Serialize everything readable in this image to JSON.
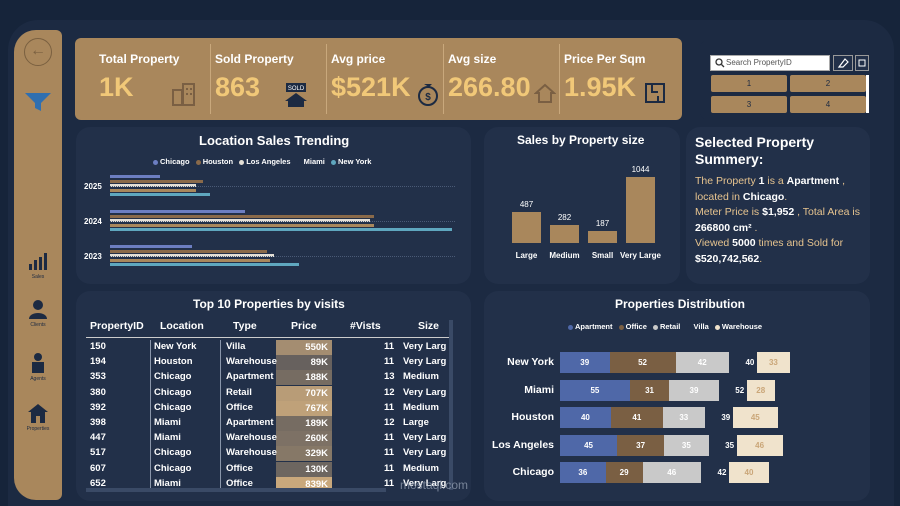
{
  "kpis": [
    {
      "title": "Total Property",
      "value": "1K",
      "icon": "buildings-icon"
    },
    {
      "title": "Sold Property",
      "value": "863",
      "icon": "sold-house-icon"
    },
    {
      "title": "Avg price",
      "value": "$521K",
      "icon": "money-bag-icon"
    },
    {
      "title": "Avg size",
      "value": "266.80",
      "icon": "house-icon"
    },
    {
      "title": "Price Per Sqm",
      "value": "1.95K",
      "icon": "floor-plan-icon"
    }
  ],
  "slicer": {
    "search_placeholder": "Search PropertyID",
    "chips": [
      "1",
      "2",
      "3",
      "4"
    ]
  },
  "sidebar": {
    "items": [
      {
        "label": "Sales",
        "icon": "bar-chart-icon"
      },
      {
        "label": "Clients",
        "icon": "clients-icon"
      },
      {
        "label": "Agents",
        "icon": "agents-icon"
      },
      {
        "label": "Properties",
        "icon": "properties-icon"
      }
    ]
  },
  "location_trend": {
    "title": "Location Sales Trending",
    "legend": [
      "Chicago",
      "Houston",
      "Los Angeles",
      "Miami",
      "New York"
    ],
    "colors": [
      "#6c7ec2",
      "#8a6a4a",
      "#e4dfd6",
      "#a9875c",
      "#5fa7bf"
    ]
  },
  "size_chart": {
    "title": "Sales by Property size"
  },
  "summary": {
    "title": "Selected Property Summery:",
    "t1": "The Property ",
    "v1": "1",
    "t2": " is a ",
    "v2": "Apartment",
    "t3": " , located in ",
    "v3": "Chicago",
    "t4": ".",
    "t5": "Meter Price  is ",
    "v5": "$1,952",
    "t6": " , Total Area is ",
    "v6": "266800 cm²",
    "t7": " .",
    "t8": "Viewed ",
    "v8": "5000",
    "t9": " times and Sold for ",
    "v9": "$520,742,562",
    "t10": "."
  },
  "top10": {
    "title": "Top 10 Properties by visits",
    "columns": [
      "PropertyID",
      "Location",
      "Type",
      "Price",
      "#Vists",
      "Size"
    ],
    "rows": [
      [
        "150",
        "New York",
        "Villa",
        "550K",
        "11",
        "Very Larg"
      ],
      [
        "194",
        "Houston",
        "Warehouse",
        "89K",
        "11",
        "Very Larg"
      ],
      [
        "353",
        "Chicago",
        "Apartment",
        "188K",
        "13",
        "Medium"
      ],
      [
        "380",
        "Chicago",
        "Retail",
        "707K",
        "12",
        "Very Larg"
      ],
      [
        "392",
        "Chicago",
        "Office",
        "767K",
        "11",
        "Medium"
      ],
      [
        "398",
        "Miami",
        "Apartment",
        "189K",
        "12",
        "Large"
      ],
      [
        "447",
        "Miami",
        "Warehouse",
        "260K",
        "11",
        "Very Larg"
      ],
      [
        "517",
        "Chicago",
        "Warehouse",
        "329K",
        "11",
        "Very Larg"
      ],
      [
        "607",
        "Chicago",
        "Office",
        "130K",
        "11",
        "Medium"
      ],
      [
        "652",
        "Miami",
        "Office",
        "839K",
        "11",
        "Very Larg"
      ]
    ]
  },
  "distribution": {
    "title": "Properties Distribution",
    "legend": [
      "Apartment",
      "Office",
      "Retail",
      "Villa",
      "Warehouse"
    ],
    "colors": [
      "#4f68a8",
      "#7a5f43",
      "#c9c9c9",
      "#223049",
      "#f0e3cc"
    ]
  },
  "watermark": "mostaql.com",
  "chart_data": [
    {
      "type": "bar",
      "orientation": "horizontal",
      "title": "Location Sales Trending",
      "categories": [
        "2025",
        "2024",
        "2023"
      ],
      "series": [
        {
          "name": "Chicago",
          "values": [
            70,
            190,
            115
          ]
        },
        {
          "name": "Houston",
          "values": [
            130,
            370,
            220
          ]
        },
        {
          "name": "Los Angeles",
          "values": [
            120,
            365,
            230
          ]
        },
        {
          "name": "Miami",
          "values": [
            120,
            370,
            225
          ]
        },
        {
          "name": "New York",
          "values": [
            140,
            480,
            265
          ]
        }
      ]
    },
    {
      "type": "bar",
      "title": "Sales by Property size",
      "categories": [
        "Large",
        "Medium",
        "Small",
        "Very Large"
      ],
      "values": [
        487,
        282,
        187,
        1044
      ]
    },
    {
      "type": "bar",
      "orientation": "horizontal",
      "stacked": true,
      "title": "Properties Distribution",
      "categories": [
        "New York",
        "Miami",
        "Houston",
        "Los Angeles",
        "Chicago"
      ],
      "series": [
        {
          "name": "Apartment",
          "values": [
            39,
            55,
            40,
            45,
            36
          ]
        },
        {
          "name": "Office",
          "values": [
            52,
            31,
            41,
            37,
            29
          ]
        },
        {
          "name": "Retail",
          "values": [
            42,
            39,
            33,
            35,
            46
          ]
        },
        {
          "name": "Villa",
          "values": [
            40,
            52,
            39,
            35,
            42
          ]
        },
        {
          "name": "Warehouse",
          "values": [
            33,
            28,
            45,
            46,
            40
          ]
        }
      ]
    }
  ]
}
